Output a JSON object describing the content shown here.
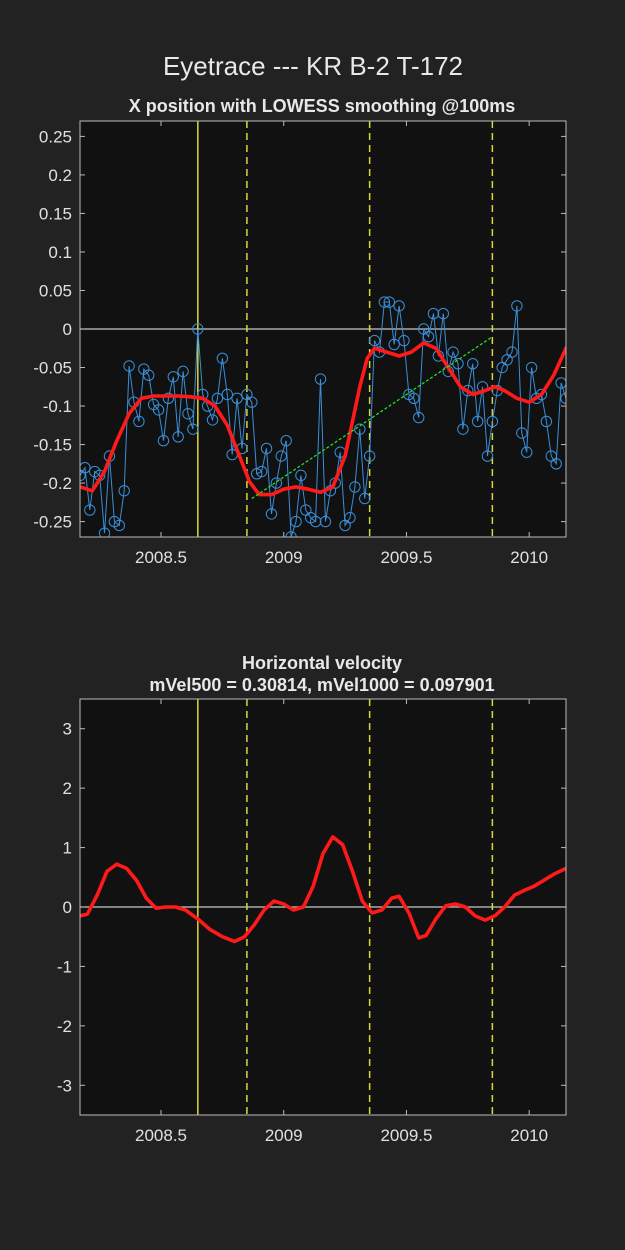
{
  "figure_title": "Eyetrace --- KR B-2 T-172",
  "chart_data": [
    {
      "type": "line",
      "title": "X position with LOWESS smoothing @100ms",
      "xlabel": "",
      "ylabel": "",
      "xlim": [
        2008.17,
        2010.15
      ],
      "ylim": [
        -0.27,
        0.27
      ],
      "xticks": [
        2008.5,
        2009,
        2009.5,
        2010
      ],
      "xtick_labels": [
        "2008.5",
        "2009",
        "2009.5",
        "2010"
      ],
      "yticks": [
        0.25,
        0.2,
        0.15,
        0.1,
        0.05,
        0,
        -0.05,
        -0.1,
        -0.15,
        -0.2,
        -0.25
      ],
      "ytick_labels": [
        "0.25",
        "0.2",
        "0.15",
        "0.1",
        "0.05",
        "0",
        "-0.05",
        "-0.1",
        "-0.15",
        "-0.2",
        "-0.25"
      ],
      "grid": false,
      "background": "#111111",
      "vlines": [
        {
          "x": 2008.65,
          "style": "solid",
          "color": "#d8d83a"
        },
        {
          "x": 2008.85,
          "style": "dashed",
          "color": "#d8d83a"
        },
        {
          "x": 2009.35,
          "style": "dashed",
          "color": "#d8d83a"
        },
        {
          "x": 2009.85,
          "style": "dashed",
          "color": "#d8d83a"
        }
      ],
      "hlines": [
        {
          "y": 0,
          "color": "#c8c8c8"
        }
      ],
      "series": [
        {
          "kind": "raw-samples",
          "color": "#3a8fd8",
          "marker": "circle",
          "points": [
            [
              2008.17,
              -0.19
            ],
            [
              2008.19,
              -0.18
            ],
            [
              2008.21,
              -0.235
            ],
            [
              2008.23,
              -0.185
            ],
            [
              2008.25,
              -0.19
            ],
            [
              2008.27,
              -0.265
            ],
            [
              2008.29,
              -0.165
            ],
            [
              2008.31,
              -0.25
            ],
            [
              2008.33,
              -0.255
            ],
            [
              2008.35,
              -0.21
            ],
            [
              2008.37,
              -0.048
            ],
            [
              2008.39,
              -0.095
            ],
            [
              2008.41,
              -0.12
            ],
            [
              2008.43,
              -0.052
            ],
            [
              2008.45,
              -0.06
            ],
            [
              2008.47,
              -0.098
            ],
            [
              2008.49,
              -0.105
            ],
            [
              2008.51,
              -0.145
            ],
            [
              2008.53,
              -0.09
            ],
            [
              2008.55,
              -0.062
            ],
            [
              2008.57,
              -0.14
            ],
            [
              2008.59,
              -0.055
            ],
            [
              2008.61,
              -0.11
            ],
            [
              2008.63,
              -0.13
            ],
            [
              2008.65,
              0.0
            ],
            [
              2008.67,
              -0.085
            ],
            [
              2008.69,
              -0.1
            ],
            [
              2008.71,
              -0.118
            ],
            [
              2008.73,
              -0.09
            ],
            [
              2008.75,
              -0.038
            ],
            [
              2008.77,
              -0.085
            ],
            [
              2008.79,
              -0.163
            ],
            [
              2008.81,
              -0.09
            ],
            [
              2008.83,
              -0.155
            ],
            [
              2008.85,
              -0.085
            ],
            [
              2008.87,
              -0.095
            ],
            [
              2008.89,
              -0.188
            ],
            [
              2008.91,
              -0.185
            ],
            [
              2008.93,
              -0.155
            ],
            [
              2008.95,
              -0.24
            ],
            [
              2008.97,
              -0.2
            ],
            [
              2008.99,
              -0.165
            ],
            [
              2009.01,
              -0.145
            ],
            [
              2009.03,
              -0.27
            ],
            [
              2009.05,
              -0.25
            ],
            [
              2009.07,
              -0.19
            ],
            [
              2009.09,
              -0.235
            ],
            [
              2009.11,
              -0.245
            ],
            [
              2009.13,
              -0.25
            ],
            [
              2009.15,
              -0.065
            ],
            [
              2009.17,
              -0.25
            ],
            [
              2009.19,
              -0.21
            ],
            [
              2009.21,
              -0.2
            ],
            [
              2009.23,
              -0.16
            ],
            [
              2009.25,
              -0.255
            ],
            [
              2009.27,
              -0.245
            ],
            [
              2009.29,
              -0.205
            ],
            [
              2009.31,
              -0.13
            ],
            [
              2009.33,
              -0.22
            ],
            [
              2009.35,
              -0.165
            ],
            [
              2009.37,
              -0.015
            ],
            [
              2009.39,
              -0.03
            ],
            [
              2009.41,
              0.035
            ],
            [
              2009.43,
              0.035
            ],
            [
              2009.45,
              -0.02
            ],
            [
              2009.47,
              0.03
            ],
            [
              2009.49,
              -0.015
            ],
            [
              2009.51,
              -0.085
            ],
            [
              2009.53,
              -0.09
            ],
            [
              2009.55,
              -0.115
            ],
            [
              2009.57,
              0.0
            ],
            [
              2009.59,
              -0.01
            ],
            [
              2009.61,
              0.02
            ],
            [
              2009.63,
              -0.035
            ],
            [
              2009.65,
              0.02
            ],
            [
              2009.67,
              -0.055
            ],
            [
              2009.69,
              -0.03
            ],
            [
              2009.71,
              -0.045
            ],
            [
              2009.73,
              -0.13
            ],
            [
              2009.75,
              -0.08
            ],
            [
              2009.77,
              -0.045
            ],
            [
              2009.79,
              -0.12
            ],
            [
              2009.81,
              -0.075
            ],
            [
              2009.83,
              -0.165
            ],
            [
              2009.85,
              -0.12
            ],
            [
              2009.87,
              -0.08
            ],
            [
              2009.89,
              -0.05
            ],
            [
              2009.91,
              -0.04
            ],
            [
              2009.93,
              -0.03
            ],
            [
              2009.95,
              0.03
            ],
            [
              2009.97,
              -0.135
            ],
            [
              2009.99,
              -0.16
            ],
            [
              2010.01,
              -0.05
            ],
            [
              2010.03,
              -0.09
            ],
            [
              2010.05,
              -0.085
            ],
            [
              2010.07,
              -0.12
            ],
            [
              2010.09,
              -0.165
            ],
            [
              2010.11,
              -0.175
            ],
            [
              2010.13,
              -0.07
            ],
            [
              2010.15,
              -0.09
            ]
          ]
        },
        {
          "kind": "lowess",
          "color": "#ff1a1a",
          "points": [
            [
              2008.17,
              -0.205
            ],
            [
              2008.22,
              -0.21
            ],
            [
              2008.27,
              -0.185
            ],
            [
              2008.32,
              -0.145
            ],
            [
              2008.37,
              -0.11
            ],
            [
              2008.42,
              -0.09
            ],
            [
              2008.47,
              -0.087
            ],
            [
              2008.52,
              -0.087
            ],
            [
              2008.57,
              -0.087
            ],
            [
              2008.62,
              -0.088
            ],
            [
              2008.67,
              -0.09
            ],
            [
              2008.72,
              -0.1
            ],
            [
              2008.77,
              -0.125
            ],
            [
              2008.82,
              -0.165
            ],
            [
              2008.86,
              -0.198
            ],
            [
              2008.9,
              -0.215
            ],
            [
              2008.95,
              -0.215
            ],
            [
              2009.0,
              -0.208
            ],
            [
              2009.05,
              -0.205
            ],
            [
              2009.1,
              -0.208
            ],
            [
              2009.15,
              -0.212
            ],
            [
              2009.2,
              -0.205
            ],
            [
              2009.25,
              -0.165
            ],
            [
              2009.28,
              -0.12
            ],
            [
              2009.31,
              -0.075
            ],
            [
              2009.34,
              -0.038
            ],
            [
              2009.37,
              -0.025
            ],
            [
              2009.42,
              -0.03
            ],
            [
              2009.47,
              -0.035
            ],
            [
              2009.52,
              -0.03
            ],
            [
              2009.57,
              -0.018
            ],
            [
              2009.62,
              -0.025
            ],
            [
              2009.67,
              -0.05
            ],
            [
              2009.72,
              -0.075
            ],
            [
              2009.77,
              -0.085
            ],
            [
              2009.82,
              -0.08
            ],
            [
              2009.86,
              -0.075
            ],
            [
              2009.9,
              -0.08
            ],
            [
              2009.95,
              -0.09
            ],
            [
              2010.0,
              -0.095
            ],
            [
              2010.05,
              -0.085
            ],
            [
              2010.1,
              -0.06
            ],
            [
              2010.15,
              -0.025
            ],
            [
              2010.19,
              -0.005
            ]
          ]
        },
        {
          "kind": "trend",
          "color": "#22ee22",
          "points": [
            [
              2008.87,
              -0.22
            ],
            [
              2009.85,
              -0.01
            ]
          ]
        }
      ]
    },
    {
      "type": "line",
      "title": "Horizontal velocity",
      "subtitle": "mVel500 = 0.30814, mVel1000 = 0.097901",
      "xlabel": "",
      "ylabel": "",
      "xlim": [
        2008.17,
        2010.15
      ],
      "ylim": [
        -3.5,
        3.5
      ],
      "xticks": [
        2008.5,
        2009,
        2009.5,
        2010
      ],
      "xtick_labels": [
        "2008.5",
        "2009",
        "2009.5",
        "2010"
      ],
      "yticks": [
        3,
        2,
        1,
        0,
        -1,
        -2,
        -3
      ],
      "ytick_labels": [
        "3",
        "2",
        "1",
        "0",
        "-1",
        "-2",
        "-3"
      ],
      "grid": false,
      "background": "#111111",
      "vlines": [
        {
          "x": 2008.65,
          "style": "solid",
          "color": "#d8d83a"
        },
        {
          "x": 2008.85,
          "style": "dashed",
          "color": "#d8d83a"
        },
        {
          "x": 2009.35,
          "style": "dashed",
          "color": "#d8d83a"
        },
        {
          "x": 2009.85,
          "style": "dashed",
          "color": "#d8d83a"
        }
      ],
      "hlines": [
        {
          "y": 0,
          "color": "#c8c8c8"
        }
      ],
      "series": [
        {
          "kind": "velocity",
          "color": "#ff1a1a",
          "points": [
            [
              2008.17,
              -0.15
            ],
            [
              2008.2,
              -0.12
            ],
            [
              2008.24,
              0.2
            ],
            [
              2008.28,
              0.6
            ],
            [
              2008.32,
              0.72
            ],
            [
              2008.36,
              0.65
            ],
            [
              2008.4,
              0.45
            ],
            [
              2008.44,
              0.15
            ],
            [
              2008.48,
              -0.02
            ],
            [
              2008.52,
              0.0
            ],
            [
              2008.56,
              0.0
            ],
            [
              2008.6,
              -0.05
            ],
            [
              2008.65,
              -0.2
            ],
            [
              2008.7,
              -0.38
            ],
            [
              2008.75,
              -0.5
            ],
            [
              2008.8,
              -0.58
            ],
            [
              2008.84,
              -0.5
            ],
            [
              2008.88,
              -0.3
            ],
            [
              2008.92,
              -0.05
            ],
            [
              2008.96,
              0.1
            ],
            [
              2009.0,
              0.05
            ],
            [
              2009.04,
              -0.05
            ],
            [
              2009.08,
              0.0
            ],
            [
              2009.12,
              0.35
            ],
            [
              2009.16,
              0.9
            ],
            [
              2009.2,
              1.18
            ],
            [
              2009.24,
              1.05
            ],
            [
              2009.28,
              0.6
            ],
            [
              2009.32,
              0.1
            ],
            [
              2009.36,
              -0.1
            ],
            [
              2009.4,
              -0.05
            ],
            [
              2009.44,
              0.15
            ],
            [
              2009.47,
              0.18
            ],
            [
              2009.51,
              -0.1
            ],
            [
              2009.55,
              -0.52
            ],
            [
              2009.58,
              -0.48
            ],
            [
              2009.62,
              -0.2
            ],
            [
              2009.66,
              0.02
            ],
            [
              2009.7,
              0.05
            ],
            [
              2009.74,
              0.0
            ],
            [
              2009.78,
              -0.15
            ],
            [
              2009.82,
              -0.22
            ],
            [
              2009.86,
              -0.15
            ],
            [
              2009.9,
              0.0
            ],
            [
              2009.94,
              0.2
            ],
            [
              2009.98,
              0.28
            ],
            [
              2010.02,
              0.35
            ],
            [
              2010.06,
              0.45
            ],
            [
              2010.1,
              0.55
            ],
            [
              2010.15,
              0.65
            ]
          ]
        }
      ]
    }
  ]
}
